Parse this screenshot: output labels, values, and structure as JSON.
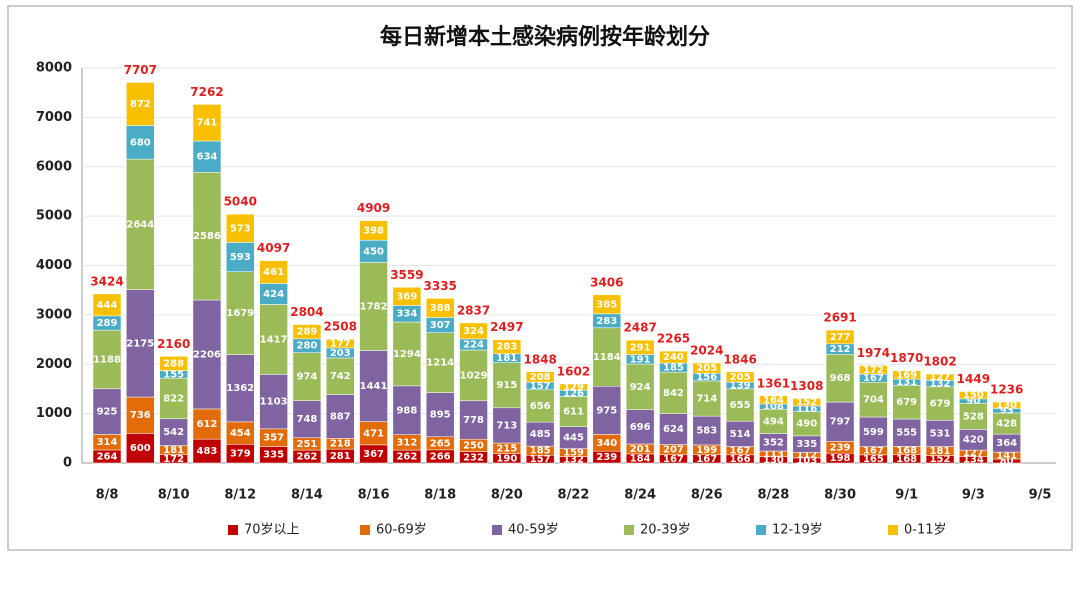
{
  "chart_data": {
    "type": "stacked_bar",
    "title": "每日新增本土感染病例按年龄划分",
    "categories": [
      "8/8",
      null,
      "8/10",
      null,
      "8/12",
      null,
      "8/14",
      null,
      "8/16",
      null,
      "8/18",
      null,
      "8/20",
      null,
      "8/22",
      null,
      "8/24",
      null,
      "8/26",
      null,
      "8/28",
      null,
      "8/30",
      null,
      "9/1",
      null,
      "9/3",
      null,
      "9/5"
    ],
    "series": [
      {
        "name": "70岁以上",
        "color": "#c00000",
        "values": [
          264,
          600,
          172,
          483,
          379,
          335,
          262,
          281,
          367,
          262,
          266,
          232,
          190,
          157,
          132,
          239,
          184,
          167,
          167,
          166,
          130,
          103,
          198,
          165,
          168,
          152,
          134,
          80,
          null
        ]
      },
      {
        "name": "60-69岁",
        "color": "#e36c09",
        "values": [
          314,
          736,
          181,
          612,
          454,
          357,
          251,
          218,
          471,
          312,
          265,
          250,
          215,
          185,
          159,
          340,
          201,
          207,
          199,
          167,
          113,
          112,
          239,
          167,
          168,
          181,
          127,
          141,
          null
        ]
      },
      {
        "name": "40-59岁",
        "color": "#8064a2",
        "values": [
          925,
          2175,
          542,
          2206,
          1362,
          1103,
          748,
          887,
          1441,
          988,
          895,
          778,
          713,
          485,
          445,
          975,
          696,
          624,
          583,
          514,
          352,
          335,
          797,
          599,
          555,
          531,
          420,
          364,
          null
        ]
      },
      {
        "name": "20-39岁",
        "color": "#9bbb59",
        "values": [
          1188,
          2644,
          822,
          2586,
          1679,
          1417,
          974,
          742,
          1782,
          1294,
          1214,
          1029,
          915,
          656,
          611,
          1184,
          924,
          842,
          714,
          655,
          494,
          490,
          968,
          704,
          679,
          679,
          528,
          428,
          null
        ]
      },
      {
        "name": "12-19岁",
        "color": "#4bacc6",
        "values": [
          289,
          680,
          155,
          634,
          593,
          424,
          280,
          203,
          450,
          334,
          307,
          224,
          181,
          157,
          126,
          283,
          191,
          185,
          156,
          139,
          108,
          116,
          212,
          167,
          131,
          132,
          90,
          93,
          null
        ]
      },
      {
        "name": "0-11岁",
        "color": "#f8c000",
        "values": [
          444,
          872,
          288,
          741,
          573,
          461,
          289,
          177,
          398,
          369,
          388,
          324,
          283,
          208,
          129,
          385,
          291,
          240,
          205,
          205,
          164,
          152,
          277,
          172,
          169,
          127,
          150,
          130,
          null
        ]
      }
    ],
    "totals": [
      3424,
      7707,
      2160,
      7262,
      5040,
      4097,
      2804,
      2508,
      4909,
      3559,
      3335,
      2837,
      2497,
      1848,
      1602,
      3406,
      2487,
      2265,
      2024,
      1846,
      1361,
      1308,
      2691,
      1974,
      1870,
      1802,
      1449,
      1236,
      null
    ],
    "ylim": [
      0,
      8000
    ],
    "yticks": [
      0,
      1000,
      2000,
      3000,
      4000,
      5000,
      6000,
      7000,
      8000
    ],
    "grid": true
  }
}
